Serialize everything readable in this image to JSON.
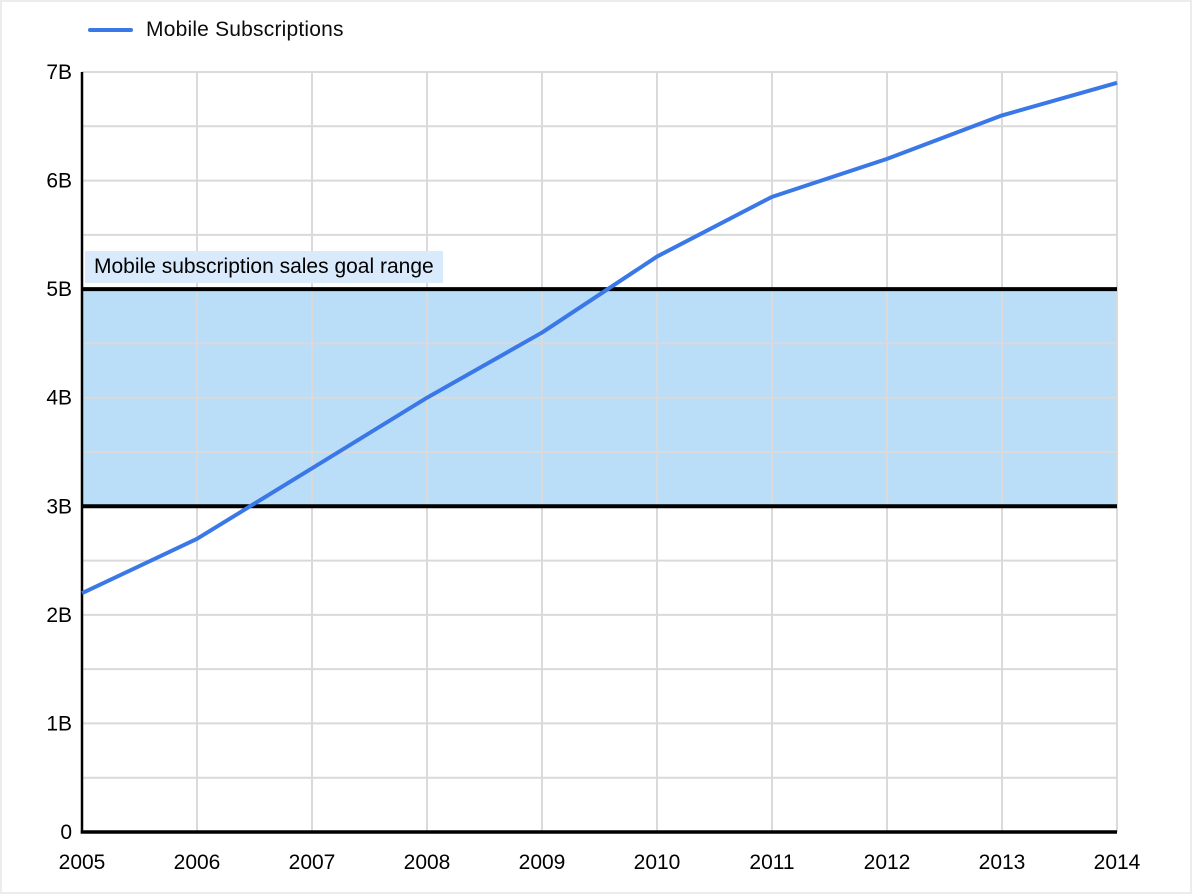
{
  "legend": {
    "label": "Mobile Subscriptions"
  },
  "annotation_label": "Mobile subscription sales goal range",
  "colors": {
    "series_blue": "#3b78e7",
    "band_fill": "#baddf8",
    "band_border": "#000000",
    "annotation_bg": "#d8eafc",
    "grid": "#dadada",
    "axis": "#000000",
    "text": "#000000",
    "background": "#ffffff"
  },
  "chart_data": {
    "type": "line",
    "title": "",
    "xlabel": "",
    "ylabel": "",
    "x": [
      "2005",
      "2006",
      "2007",
      "2008",
      "2009",
      "2010",
      "2011",
      "2012",
      "2013",
      "2014"
    ],
    "series": [
      {
        "name": "Mobile Subscriptions",
        "color": "#3b78e7",
        "unit": "billions",
        "values": [
          2.2,
          2.7,
          3.35,
          4.0,
          4.6,
          5.3,
          5.85,
          6.2,
          6.6,
          6.9
        ]
      }
    ],
    "y_axis": {
      "range": [
        0,
        7
      ],
      "minor_step": 0.5,
      "ticks": [
        {
          "value": 0,
          "label": "0"
        },
        {
          "value": 1,
          "label": "1B"
        },
        {
          "value": 2,
          "label": "2B"
        },
        {
          "value": 3,
          "label": "3B"
        },
        {
          "value": 4,
          "label": "4B"
        },
        {
          "value": 5,
          "label": "5B"
        },
        {
          "value": 6,
          "label": "6B"
        },
        {
          "value": 7,
          "label": "7B"
        }
      ]
    },
    "x_axis": {
      "ticks": [
        "2005",
        "2006",
        "2007",
        "2008",
        "2009",
        "2010",
        "2011",
        "2012",
        "2013",
        "2014"
      ]
    },
    "annotation": {
      "label": "Mobile subscription sales goal range",
      "band_from": 3,
      "band_to": 5
    },
    "grid": "on",
    "legend_position": "top-left"
  }
}
